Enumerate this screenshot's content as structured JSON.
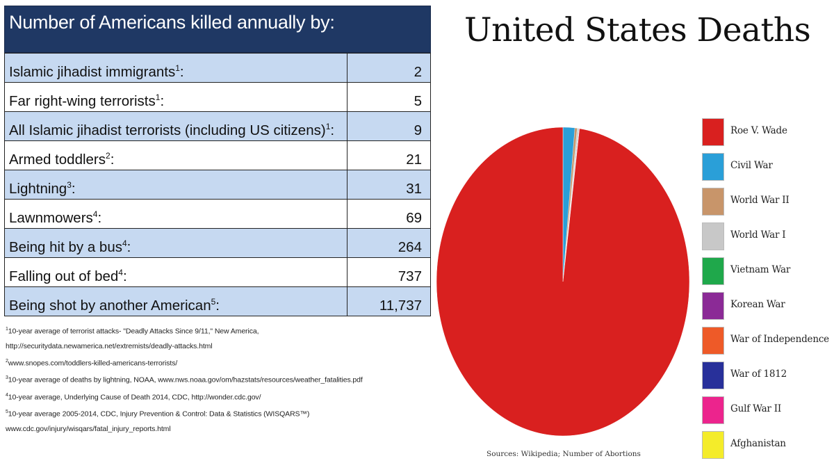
{
  "table": {
    "title": "Number of Americans killed annually by:",
    "rows": [
      {
        "label": "Islamic jihadist immigrants",
        "ref": "1",
        "value": "2"
      },
      {
        "label": "Far right-wing terrorists",
        "ref": "1",
        "value": "5"
      },
      {
        "label": "All Islamic jihadist terrorists (including US citizens)",
        "ref": "1",
        "value": "9"
      },
      {
        "label": "Armed toddlers",
        "ref": "2",
        "value": "21"
      },
      {
        "label": "Lightning",
        "ref": "3",
        "value": "31"
      },
      {
        "label": "Lawnmowers",
        "ref": "4",
        "value": "69"
      },
      {
        "label": "Being hit by a bus",
        "ref": "4",
        "value": "264"
      },
      {
        "label": "Falling out of bed",
        "ref": "4",
        "value": "737"
      },
      {
        "label": "Being shot by another American",
        "ref": "5",
        "value": "11,737"
      }
    ],
    "footnotes": [
      {
        "ref": "1",
        "lines": [
          "10-year average of terrorist attacks- \"Deadly Attacks Since 9/11,\" New America,",
          "http://securitydata.newamerica.net/extremists/deadly-attacks.html"
        ]
      },
      {
        "ref": "2",
        "lines": [
          "www.snopes.com/toddlers-killed-americans-terrorists/"
        ]
      },
      {
        "ref": "3",
        "lines": [
          "10-year average of deaths by lightning, NOAA, www.nws.noaa.gov/om/hazstats/resources/weather_fatalities.pdf"
        ]
      },
      {
        "ref": "4",
        "lines": [
          "10-year average, Underlying Cause of Death 2014, CDC, http://wonder.cdc.gov/"
        ]
      },
      {
        "ref": "5",
        "lines": [
          "10-year average 2005-2014, CDC, Injury Prevention & Control: Data & Statistics (WISQARS™)",
          "www.cdc.gov/injury/wisqars/fatal_injury_reports.html"
        ]
      }
    ]
  },
  "chart_data": [
    {
      "type": "table",
      "title": "Number of Americans killed annually by:",
      "categories": [
        "Islamic jihadist immigrants",
        "Far right-wing terrorists",
        "All Islamic jihadist terrorists (including US citizens)",
        "Armed toddlers",
        "Lightning",
        "Lawnmowers",
        "Being hit by a bus",
        "Falling out of bed",
        "Being shot by another American"
      ],
      "values": [
        2,
        5,
        9,
        21,
        31,
        69,
        264,
        737,
        11737
      ]
    },
    {
      "type": "pie",
      "title": "United States Deaths",
      "source": "Sources: Wikipedia; Number of Abortions",
      "legend_position": "right",
      "slices": [
        {
          "name": "Roe V. Wade",
          "value": 97.9,
          "color": "#d9201f"
        },
        {
          "name": "Civil War",
          "value": 1.5,
          "color": "#2a9fd8"
        },
        {
          "name": "World War II",
          "value": 0.3,
          "color": "#c8956a"
        },
        {
          "name": "World War I",
          "value": 0.1,
          "color": "#c8c8c8"
        },
        {
          "name": "Vietnam War",
          "value": 0.05,
          "color": "#1fa84b"
        },
        {
          "name": "Korean War",
          "value": 0.05,
          "color": "#8b2a96"
        },
        {
          "name": "War of Independence",
          "value": 0.03,
          "color": "#ee5a28"
        },
        {
          "name": "War of 1812",
          "value": 0.02,
          "color": "#28309a"
        },
        {
          "name": "Gulf War II",
          "value": 0.02,
          "color": "#ec248d"
        },
        {
          "name": "Afghanistan",
          "value": 0.01,
          "color": "#f4ec2a"
        }
      ]
    }
  ]
}
